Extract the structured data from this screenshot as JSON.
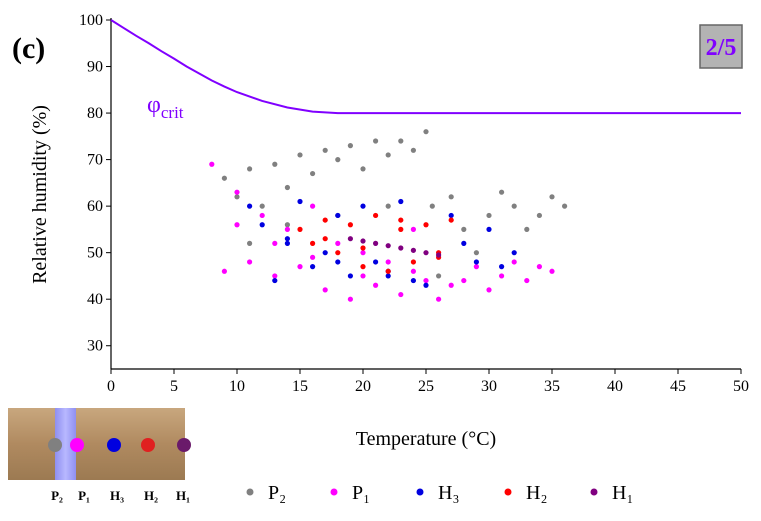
{
  "chart_data": {
    "type": "scatter",
    "panel_label": "(c)",
    "badge": "2/5",
    "x_label": "Temperature (°C)",
    "y_label": "Relative humidity (%)",
    "xlim": [
      0,
      50
    ],
    "xticks": [
      0,
      5,
      10,
      15,
      20,
      25,
      30,
      35,
      40,
      45,
      50
    ],
    "ylim": [
      25,
      100
    ],
    "yticks": [
      30,
      40,
      50,
      60,
      70,
      80,
      90,
      100
    ],
    "curve": {
      "label": "φ",
      "label_sub": "crit",
      "color": "#8000ff",
      "x": [
        0,
        1,
        2,
        3,
        4,
        5,
        6,
        7,
        8,
        9,
        10,
        12,
        14,
        16,
        18,
        20,
        30,
        40,
        50
      ],
      "values": [
        100,
        98.3,
        96.6,
        95,
        93.3,
        91.7,
        90,
        88.5,
        87,
        85.7,
        84.5,
        82.6,
        81.2,
        80.3,
        80,
        80,
        80,
        80,
        80
      ]
    },
    "series": [
      {
        "name": "P₂",
        "color": "#808080",
        "x": [
          9,
          10,
          11,
          12,
          13,
          14,
          15,
          16,
          17,
          18,
          19,
          20,
          21,
          22,
          23,
          24,
          25,
          25.5,
          26,
          27,
          28,
          29,
          30,
          31,
          32,
          33,
          34,
          35,
          36,
          11,
          14,
          18,
          22
        ],
        "values": [
          66,
          62,
          68,
          60,
          69,
          64,
          71,
          67,
          72,
          70,
          73,
          68,
          74,
          71,
          74,
          72,
          76,
          60,
          45,
          62,
          55,
          50,
          58,
          63,
          60,
          55,
          58,
          62,
          60,
          52,
          56,
          58,
          60
        ]
      },
      {
        "name": "P₁",
        "color": "#ff00ff",
        "x": [
          8,
          9,
          10,
          11,
          12,
          13,
          14,
          15,
          16,
          17,
          18,
          19,
          20,
          21,
          22,
          23,
          24,
          25,
          26,
          27,
          28,
          29,
          30,
          31,
          32,
          33,
          34,
          35,
          10,
          13,
          16,
          20,
          24
        ],
        "values": [
          69,
          46,
          63,
          48,
          58,
          45,
          55,
          47,
          60,
          42,
          52,
          40,
          50,
          43,
          48,
          41,
          46,
          44,
          40,
          43,
          44,
          47,
          42,
          45,
          48,
          44,
          47,
          46,
          56,
          52,
          49,
          45,
          55
        ]
      },
      {
        "name": "H₃",
        "color": "#0000e0",
        "x": [
          11,
          12,
          13,
          14,
          15,
          16,
          17,
          18,
          19,
          20,
          21,
          22,
          23,
          24,
          25,
          27,
          28,
          29,
          30,
          31,
          32,
          14,
          18,
          22
        ],
        "values": [
          60,
          56,
          44,
          52,
          61,
          47,
          50,
          58,
          45,
          60,
          48,
          46,
          61,
          44,
          43,
          58,
          52,
          48,
          55,
          47,
          50,
          53,
          48,
          45
        ]
      },
      {
        "name": "H₂",
        "color": "#ff0000",
        "x": [
          15,
          16,
          17,
          18,
          19,
          20,
          21,
          22,
          23,
          24,
          25,
          26,
          27,
          17,
          20,
          23,
          26
        ],
        "values": [
          55,
          52,
          57,
          50,
          56,
          47,
          58,
          46,
          57,
          48,
          56,
          49,
          57,
          53,
          51,
          55,
          50
        ]
      },
      {
        "name": "H₁",
        "color": "#800080",
        "x": [
          19,
          20,
          21,
          22,
          23,
          24,
          25,
          26
        ],
        "values": [
          53,
          52.5,
          52,
          51.5,
          51,
          50.5,
          50,
          49.5
        ]
      }
    ],
    "inset_labels": [
      "P₂",
      "P₁",
      "H₃",
      "H₂",
      "H₁"
    ]
  }
}
